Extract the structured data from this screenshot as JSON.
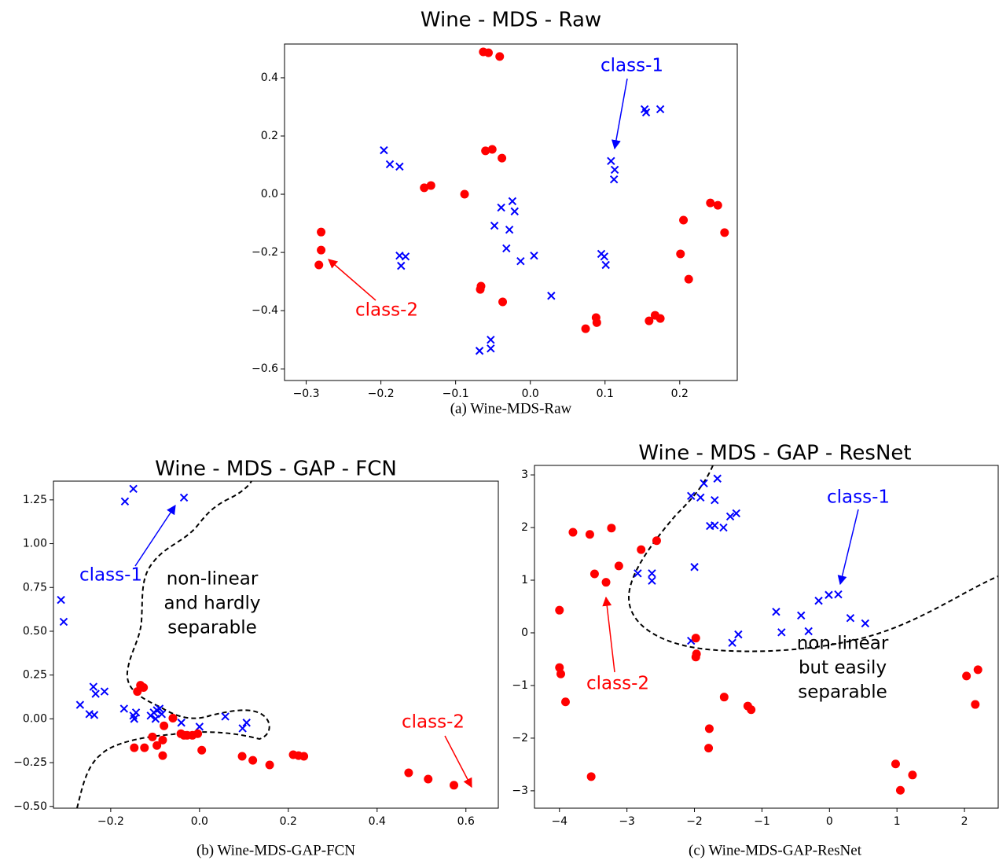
{
  "chart_data": [
    {
      "type": "scatter",
      "title": "Wine - MDS - Raw",
      "caption": "(a) Wine-MDS-Raw",
      "xlim": [
        -0.329,
        0.277
      ],
      "ylim": [
        -0.64,
        0.516
      ],
      "xticks": [
        {
          "value": -0.3,
          "label": "−0.3"
        },
        {
          "value": -0.2,
          "label": "−0.2"
        },
        {
          "value": -0.1,
          "label": "−0.1"
        },
        {
          "value": 0,
          "label": "0.0"
        },
        0.1,
        0.2
      ],
      "yticks": [
        {
          "value": -0.6,
          "label": "−0.6"
        },
        {
          "value": -0.4,
          "label": "−0.4"
        },
        {
          "value": -0.2,
          "label": "−0.2"
        },
        {
          "value": 0,
          "label": "0.0"
        },
        0.2,
        0.4
      ],
      "series": [
        {
          "color": "#ff0000",
          "marker": "o",
          "x": [
            -0.063,
            -0.056,
            -0.041,
            -0.06,
            -0.051,
            -0.038,
            -0.142,
            -0.133,
            -0.088,
            -0.28,
            -0.28,
            -0.283,
            -0.066,
            -0.067,
            -0.037,
            0.074,
            0.088,
            0.089,
            0.159,
            0.167,
            0.174,
            0.201,
            0.212,
            0.205,
            0.241,
            0.251,
            0.26
          ],
          "values": [
            0.489,
            0.486,
            0.473,
            0.149,
            0.154,
            0.124,
            0.022,
            0.03,
            0.0,
            -0.13,
            -0.192,
            -0.243,
            -0.316,
            -0.327,
            -0.37,
            -0.462,
            -0.424,
            -0.441,
            -0.435,
            -0.416,
            -0.427,
            -0.205,
            -0.292,
            -0.089,
            -0.03,
            -0.038,
            -0.132
          ]
        },
        {
          "color": "#0000ff",
          "marker": "x",
          "x": [
            -0.196,
            -0.188,
            -0.175,
            0.153,
            0.155,
            0.174,
            0.108,
            0.113,
            0.112,
            -0.024,
            -0.021,
            -0.039,
            -0.048,
            -0.028,
            -0.032,
            -0.013,
            0.005,
            -0.175,
            -0.167,
            -0.173,
            0.095,
            0.099,
            0.101,
            0.028,
            -0.068,
            -0.053,
            -0.053
          ],
          "values": [
            0.151,
            0.103,
            0.095,
            0.292,
            0.281,
            0.292,
            0.114,
            0.084,
            0.051,
            -0.024,
            -0.059,
            -0.046,
            -0.108,
            -0.122,
            -0.186,
            -0.23,
            -0.211,
            -0.211,
            -0.214,
            -0.246,
            -0.205,
            -0.214,
            -0.243,
            -0.349,
            -0.538,
            -0.5,
            -0.53
          ]
        }
      ],
      "annotations": [
        {
          "text": [
            "class-1"
          ],
          "color": "#0000ff"
        },
        {
          "text": [
            "class-2"
          ],
          "color": "#ff0000"
        }
      ]
    },
    {
      "type": "scatter",
      "title": "Wine - MDS - GAP - FCN",
      "caption": "(b) Wine-MDS-GAP-FCN",
      "xlim": [
        -0.329,
        0.673
      ],
      "ylim": [
        -0.51,
        1.357
      ],
      "xticks": [
        {
          "value": -0.2,
          "label": "−0.2"
        },
        {
          "value": 0,
          "label": "0.0"
        },
        0.2,
        0.4,
        0.6
      ],
      "yticks": [
        {
          "value": -0.5,
          "label": "−0.50"
        },
        {
          "value": -0.25,
          "label": "−0.25"
        },
        {
          "value": 0,
          "label": "0.00"
        },
        0.25,
        {
          "value": 0.5,
          "label": "0.50"
        },
        0.75,
        {
          "value": 1,
          "label": "1.00"
        },
        1.25
      ],
      "series": [
        {
          "color": "#0000ff",
          "marker": "x",
          "x": [
            -0.149,
            -0.168,
            -0.035,
            -0.312,
            -0.306,
            -0.269,
            -0.239,
            -0.248,
            -0.237,
            -0.234,
            -0.214,
            -0.17,
            -0.149,
            -0.143,
            -0.147,
            -0.11,
            -0.103,
            -0.099,
            -0.09,
            -0.085,
            -0.096,
            -0.041,
            0.0,
            0.058,
            0.097,
            0.106
          ],
          "values": [
            1.313,
            1.241,
            1.263,
            0.679,
            0.554,
            0.08,
            0.183,
            0.027,
            0.022,
            0.143,
            0.156,
            0.058,
            0.018,
            0.036,
            0.0,
            0.018,
            0.036,
            0.0,
            0.058,
            0.027,
            0.049,
            -0.022,
            -0.045,
            0.013,
            -0.054,
            -0.022
          ]
        },
        {
          "color": "#ff0000",
          "marker": "o",
          "x": [
            -0.133,
            -0.126,
            -0.14,
            -0.147,
            -0.124,
            -0.106,
            -0.08,
            -0.06,
            -0.096,
            -0.083,
            -0.083,
            -0.042,
            -0.035,
            -0.028,
            -0.016,
            -0.004,
            0.005,
            0.096,
            0.12,
            0.158,
            0.211,
            0.223,
            0.235,
            0.471,
            0.515,
            0.573
          ],
          "values": [
            0.192,
            0.179,
            0.156,
            -0.165,
            -0.165,
            -0.103,
            -0.04,
            0.004,
            -0.152,
            -0.121,
            -0.21,
            -0.085,
            -0.094,
            -0.094,
            -0.094,
            -0.085,
            -0.179,
            -0.214,
            -0.237,
            -0.263,
            -0.205,
            -0.21,
            -0.214,
            -0.308,
            -0.344,
            -0.379
          ]
        }
      ],
      "annotations": [
        {
          "text": [
            "class-1"
          ],
          "color": "#0000ff"
        },
        {
          "text": [
            "class-2"
          ],
          "color": "#ff0000"
        },
        {
          "text": [
            "non-linear",
            "and hardly",
            "separable"
          ],
          "color": "#000000"
        }
      ]
    },
    {
      "type": "scatter",
      "title": "Wine - MDS - GAP - ResNet",
      "caption": "(c) Wine-MDS-GAP-ResNet",
      "xlim": [
        -4.37,
        2.5
      ],
      "ylim": [
        -3.33,
        3.18
      ],
      "xticks": [
        {
          "value": -4,
          "label": "−4"
        },
        {
          "value": -3,
          "label": "−3"
        },
        {
          "value": -2,
          "label": "−2"
        },
        {
          "value": -1,
          "label": "−1"
        },
        0,
        1,
        2
      ],
      "yticks": [
        {
          "value": -3,
          "label": "−3"
        },
        {
          "value": -2,
          "label": "−2"
        },
        {
          "value": -1,
          "label": "−1"
        },
        0,
        1,
        2,
        3
      ],
      "series": [
        {
          "color": "#0000ff",
          "marker": "x",
          "x": [
            -1.66,
            -1.86,
            -2.05,
            -1.91,
            -1.7,
            -1.77,
            -1.7,
            -1.57,
            -1.47,
            -1.38,
            -2.84,
            -2.63,
            -2.63,
            -2.0,
            -0.79,
            -0.42,
            -0.71,
            -0.31,
            -0.16,
            -0.01,
            0.13,
            0.31,
            0.53,
            -2.05,
            -1.44,
            -1.35
          ],
          "values": [
            2.93,
            2.84,
            2.6,
            2.57,
            2.52,
            2.03,
            2.04,
            2.0,
            2.21,
            2.27,
            1.13,
            1.13,
            0.99,
            1.25,
            0.4,
            0.33,
            0.01,
            0.03,
            0.61,
            0.72,
            0.73,
            0.28,
            0.18,
            -0.15,
            -0.19,
            -0.03
          ]
        },
        {
          "color": "#ff0000",
          "marker": "o",
          "x": [
            -3.8,
            -3.55,
            -3.23,
            -3.48,
            -3.31,
            -3.12,
            -2.79,
            -2.56,
            -4.0,
            -4.0,
            -3.98,
            -3.91,
            -1.98,
            -1.97,
            -1.98,
            -1.56,
            -1.21,
            -1.16,
            -1.78,
            -1.79,
            -3.53,
            0.98,
            1.05,
            1.23,
            2.03,
            2.2,
            2.16
          ],
          "values": [
            1.91,
            1.87,
            1.99,
            1.12,
            0.96,
            1.27,
            1.58,
            1.75,
            0.43,
            -0.66,
            -0.78,
            -1.31,
            -0.1,
            -0.4,
            -0.46,
            -1.22,
            -1.39,
            -1.46,
            -1.82,
            -2.19,
            -2.73,
            -2.49,
            -2.99,
            -2.7,
            -0.82,
            -0.7,
            -1.36
          ]
        }
      ],
      "annotations": [
        {
          "text": [
            "class-1"
          ],
          "color": "#0000ff"
        },
        {
          "text": [
            "class-2"
          ],
          "color": "#ff0000"
        },
        {
          "text": [
            "non-linear",
            "but easily",
            "separable"
          ],
          "color": "#000000"
        }
      ]
    }
  ]
}
